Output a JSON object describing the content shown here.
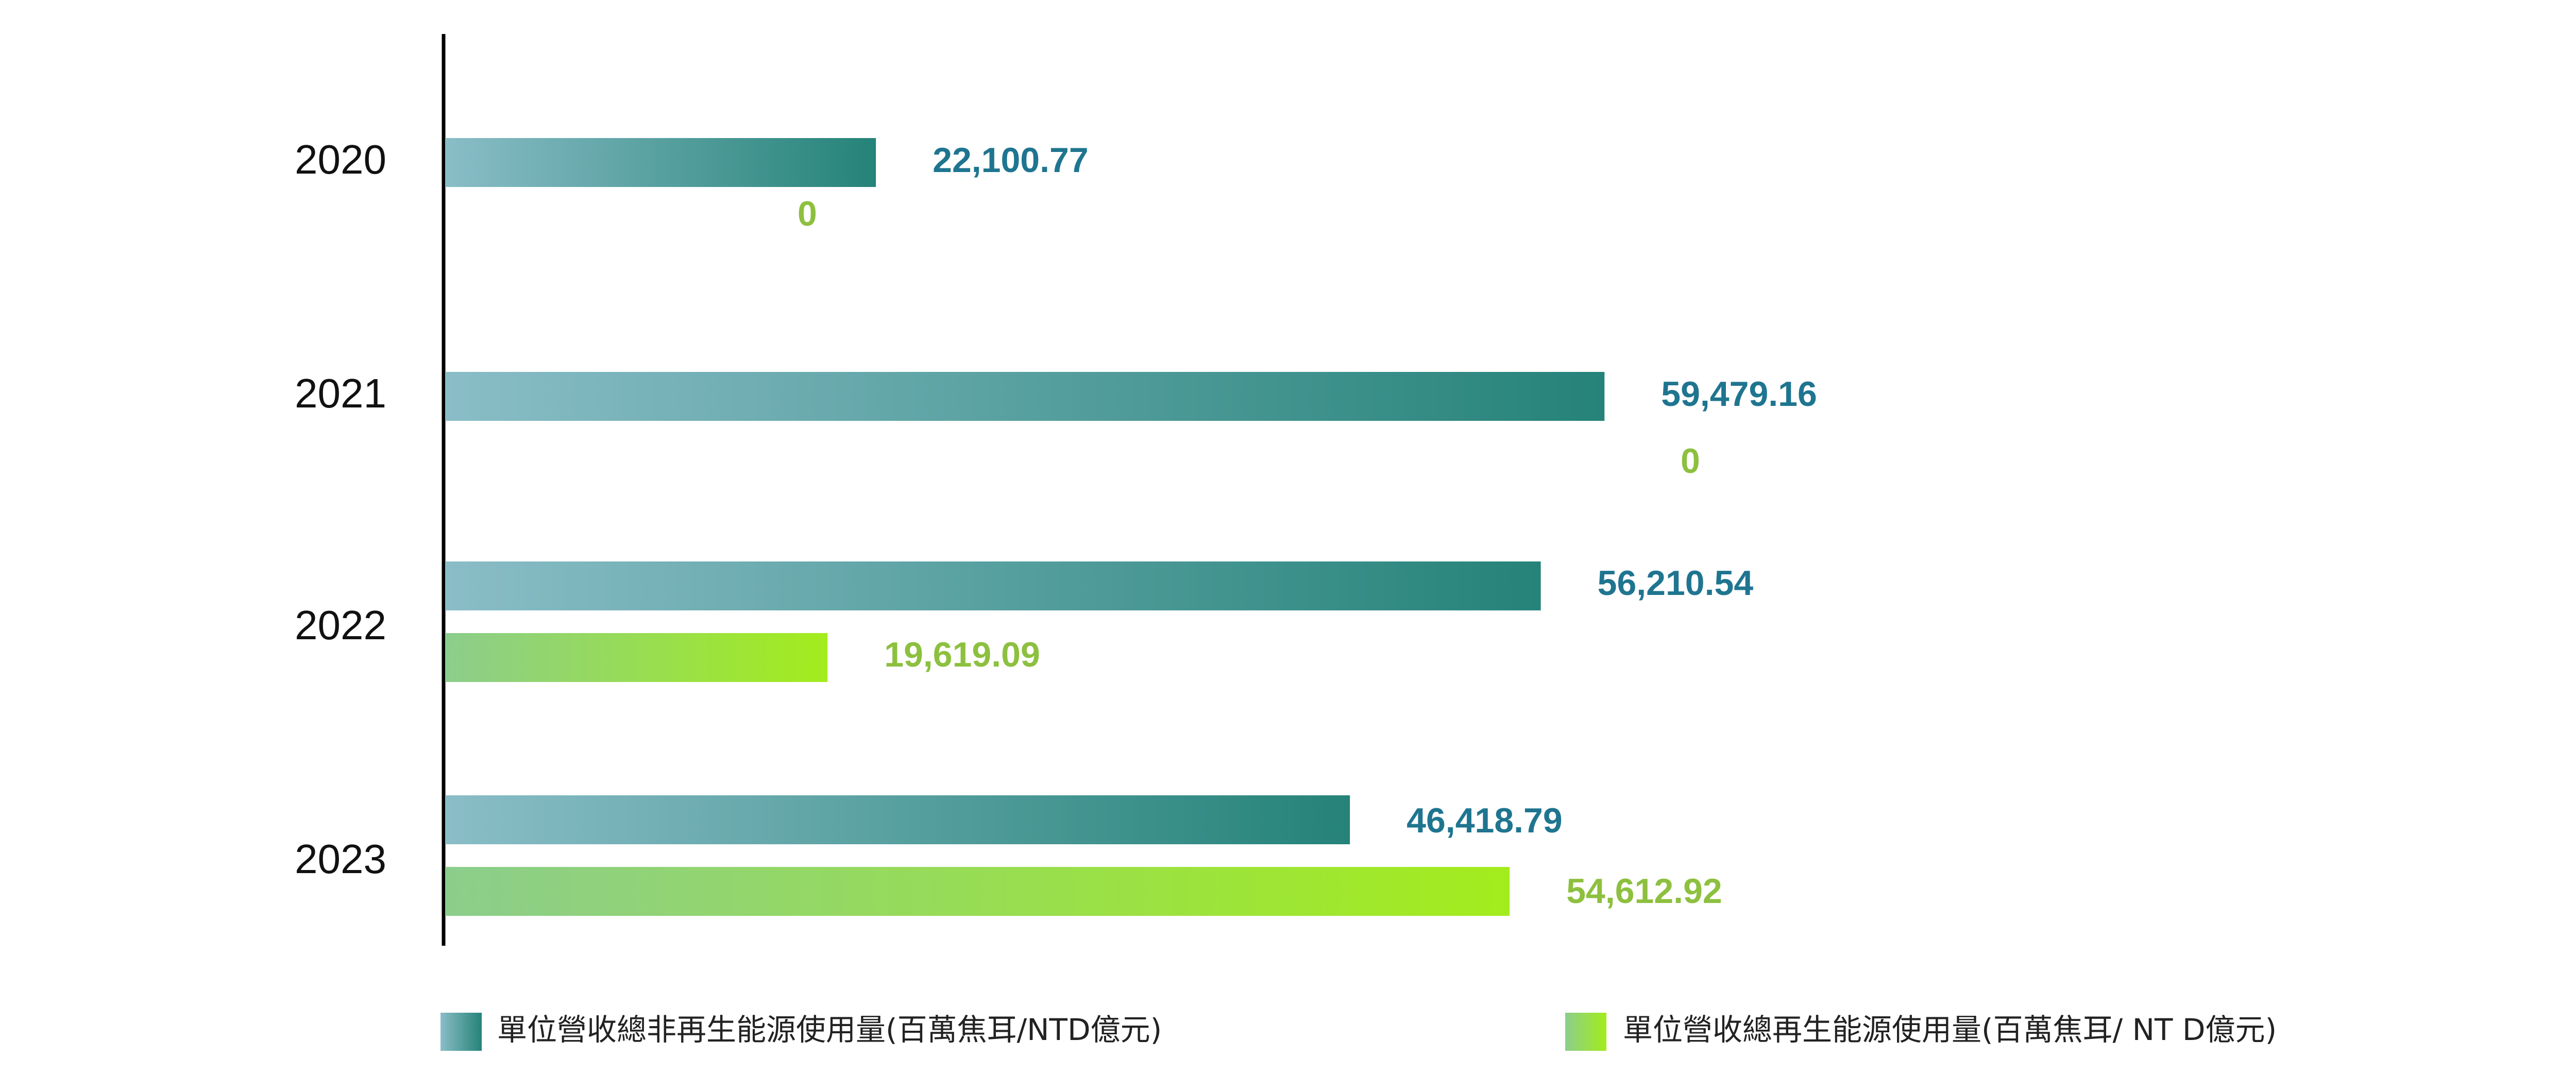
{
  "chart_data": {
    "type": "bar",
    "orientation": "horizontal",
    "categories": [
      "2020",
      "2021",
      "2022",
      "2023"
    ],
    "series": [
      {
        "name": "單位營收總非再生能源使用量(百萬焦耳/NTD億元)",
        "values": [
          22100.77,
          59479.16,
          56210.54,
          46418.79
        ],
        "labels": [
          "22,100.77",
          "59,479.16",
          "56,210.54",
          "46,418.79"
        ],
        "color_start": "#8abdc7",
        "color_end": "#258379",
        "label_color": "#1f7590"
      },
      {
        "name": "單位營收總再生能源使用量(百萬焦耳/ NT D億元)",
        "values": [
          0,
          0,
          19619.09,
          54612.92
        ],
        "labels": [
          "0",
          "0",
          "19,619.09",
          "54,612.92"
        ],
        "color_start": "#8ccd8c",
        "color_end": "#a3ec1c",
        "label_color": "#8dc03f"
      }
    ],
    "xlim": [
      0,
      60000
    ],
    "grid": false,
    "legend_position": "bottom"
  }
}
